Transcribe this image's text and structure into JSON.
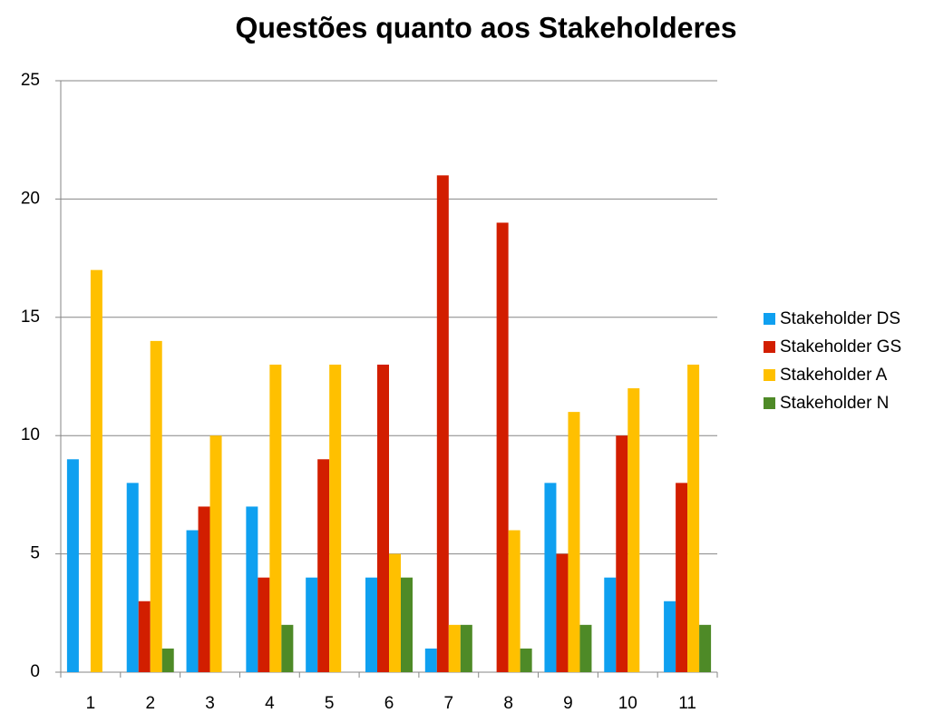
{
  "chart_data": {
    "type": "bar",
    "title": "Questões quanto aos Stakeholderes",
    "categories": [
      "1",
      "2",
      "3",
      "4",
      "5",
      "6",
      "7",
      "8",
      "9",
      "10",
      "11"
    ],
    "series": [
      {
        "name": "Stakeholder DS",
        "color": "#0fa0f0",
        "values": [
          9,
          8,
          6,
          7,
          4,
          4,
          1,
          0,
          8,
          4,
          3
        ]
      },
      {
        "name": "Stakeholder GS",
        "color": "#d21e00",
        "values": [
          0,
          3,
          7,
          4,
          9,
          13,
          21,
          19,
          5,
          10,
          8
        ]
      },
      {
        "name": "Stakeholder A",
        "color": "#ffc000",
        "values": [
          17,
          14,
          10,
          13,
          13,
          5,
          2,
          6,
          11,
          12,
          13
        ]
      },
      {
        "name": "Stakeholder N",
        "color": "#4e8a27",
        "values": [
          0,
          1,
          0,
          2,
          0,
          4,
          2,
          1,
          2,
          0,
          2
        ]
      }
    ],
    "ylim": [
      0,
      25
    ],
    "yticks": [
      0,
      5,
      10,
      15,
      20,
      25
    ],
    "grid": true,
    "legend": "right"
  }
}
